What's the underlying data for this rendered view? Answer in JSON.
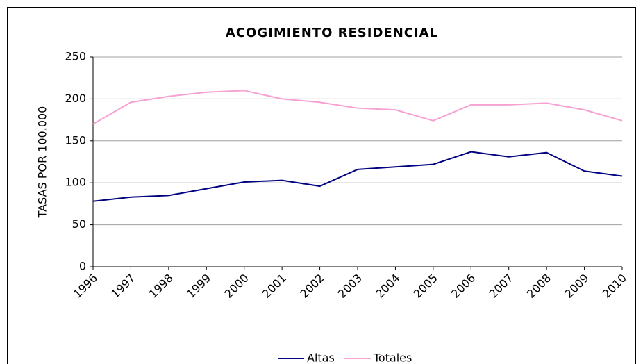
{
  "chart_data": {
    "type": "line",
    "title": "ACOGIMIENTO RESIDENCIAL",
    "y_label": "TASAS POR 100.000",
    "categories": [
      "1996",
      "1997",
      "1998",
      "1999",
      "2000",
      "2001",
      "2002",
      "2003",
      "2004",
      "2005",
      "2006",
      "2007",
      "2008",
      "2009",
      "2010"
    ],
    "series": [
      {
        "name": "Altas",
        "color": "#000080",
        "values": [
          78,
          83,
          85,
          93,
          101,
          103,
          96,
          116,
          119,
          122,
          137,
          131,
          136,
          114,
          108
        ]
      },
      {
        "name": "Totales",
        "color": "#f7a1d2",
        "values": [
          170,
          196,
          203,
          208,
          210,
          200,
          196,
          189,
          187,
          174,
          193,
          193,
          195,
          187,
          174
        ]
      }
    ],
    "ylim": [
      0,
      250
    ],
    "yticks": [
      0,
      50,
      100,
      150,
      200,
      250
    ],
    "grid": true,
    "legend": "bottom"
  }
}
